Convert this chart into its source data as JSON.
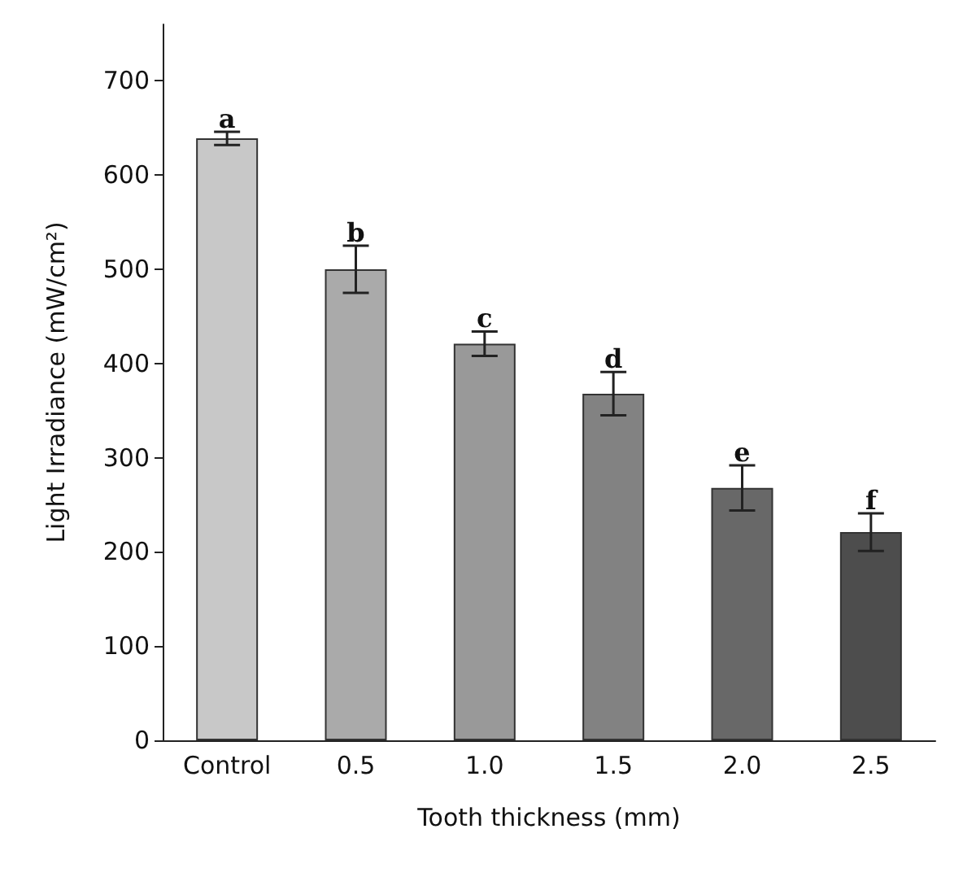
{
  "chart_data": {
    "type": "bar",
    "xlabel": "Tooth thickness (mm)",
    "ylabel": "Light Irradiance (mW/cm²)",
    "categories": [
      "Control",
      "0.5",
      "1.0",
      "1.5",
      "2.0",
      "2.5"
    ],
    "values": [
      639,
      500,
      421,
      368,
      268,
      221
    ],
    "errors": [
      7,
      25,
      13,
      23,
      24,
      20
    ],
    "colors": [
      "#c8c8c8",
      "#aaaaaa",
      "#999999",
      "#828282",
      "#686868",
      "#4d4d4d"
    ],
    "ylim": [
      0,
      760
    ],
    "yticks": [
      0,
      100,
      200,
      300,
      400,
      500,
      600,
      700
    ],
    "grid": false,
    "annotations": [
      {
        "text": "a",
        "x": "Control",
        "y": 646
      },
      {
        "text": "b",
        "x": "0.5",
        "y": 525
      },
      {
        "text": "c",
        "x": "1.0",
        "y": 434
      },
      {
        "text": "d",
        "x": "1.5",
        "y": 391
      },
      {
        "text": "e",
        "x": "2.0",
        "y": 292
      },
      {
        "text": "f",
        "x": "2.5",
        "y": 241
      }
    ]
  }
}
